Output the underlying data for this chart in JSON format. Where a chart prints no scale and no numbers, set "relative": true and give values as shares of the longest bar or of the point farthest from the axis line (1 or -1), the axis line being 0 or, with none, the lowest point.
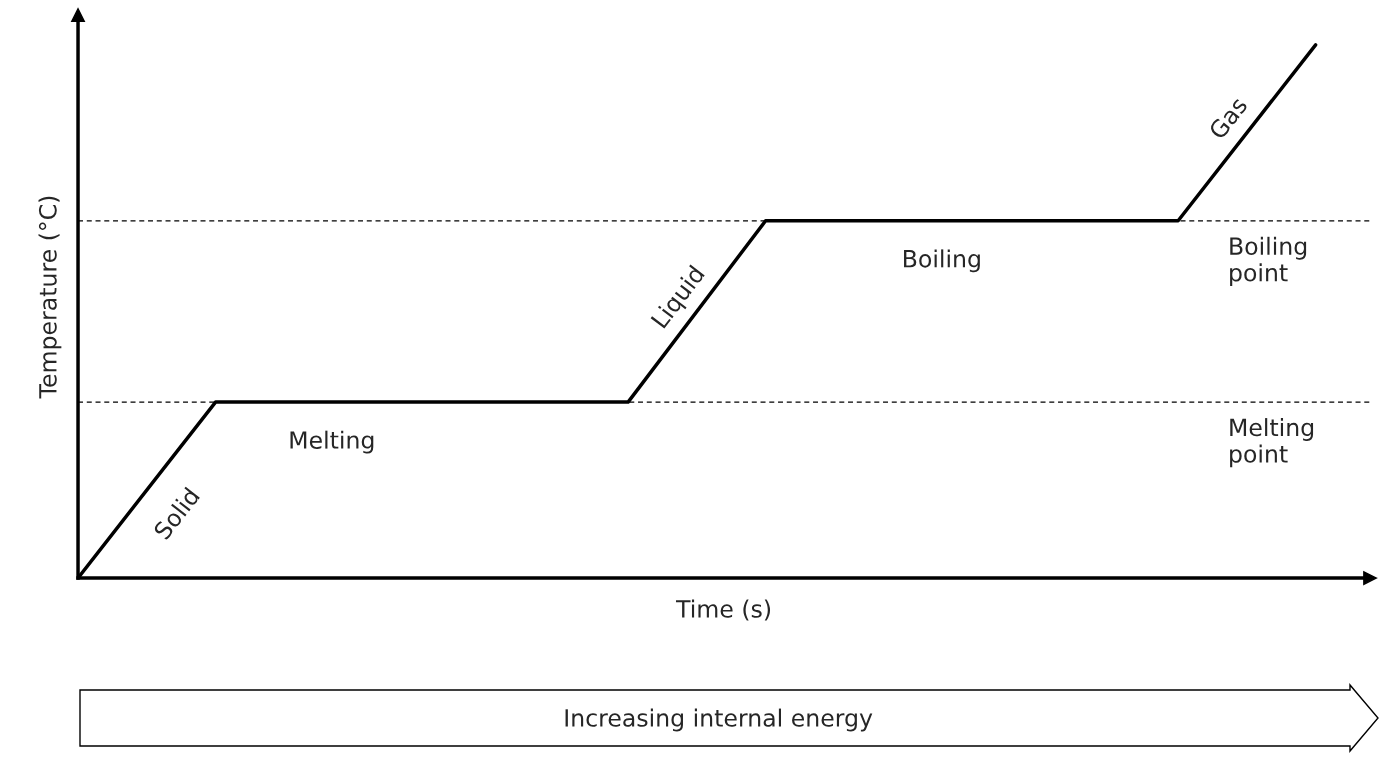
{
  "chart_data": {
    "type": "line",
    "relative": true,
    "xlabel": "Time (s)",
    "ylabel": "Temperature (°C)",
    "categories": [
      null,
      null,
      null,
      null,
      null,
      null,
      null,
      null,
      null,
      null
    ],
    "series": [
      {
        "color": "#000000",
        "values": [
          0,
          0.33,
          0.33,
          0.33,
          0.33,
          0.67,
          0.67,
          0.67,
          0.67,
          1
        ]
      }
    ],
    "ref_lines": [
      {
        "axis": "y",
        "value": 0.33,
        "label": "Melting\npoint",
        "line_style": "dashed",
        "color": "#000000"
      },
      {
        "axis": "y",
        "value": 0.67,
        "label": "Boiling\npoint",
        "line_style": "dashed",
        "color": "#000000"
      }
    ],
    "annotations": [
      "Solid",
      "Melting",
      "Liquid",
      "Boiling",
      "Gas",
      "Increasing internal energy"
    ]
  }
}
